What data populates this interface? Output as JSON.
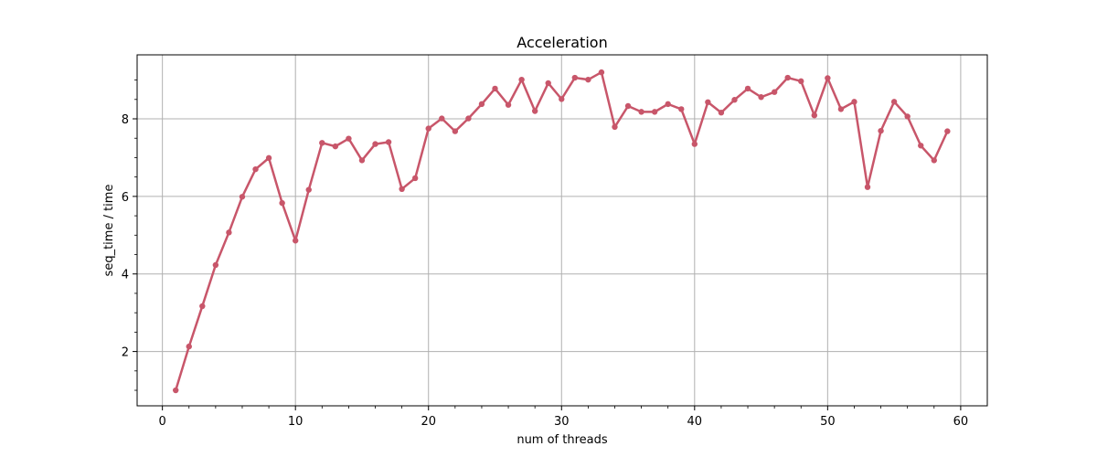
{
  "chart_data": {
    "type": "line",
    "title": "Acceleration",
    "xlabel": "num of threads",
    "ylabel": "seq_time / time",
    "xlim": [
      -1.9,
      62
    ],
    "ylim": [
      0.6,
      9.65
    ],
    "xticks": [
      0,
      10,
      20,
      30,
      40,
      50,
      60
    ],
    "yticks": [
      2,
      4,
      6,
      8
    ],
    "grid": true,
    "legend": "none",
    "series": [
      {
        "color": "#c8566a",
        "marker": "circle",
        "x": [
          1,
          2,
          3,
          4,
          5,
          6,
          7,
          8,
          9,
          10,
          11,
          12,
          13,
          14,
          15,
          16,
          17,
          18,
          19,
          20,
          21,
          22,
          23,
          24,
          25,
          26,
          27,
          28,
          29,
          30,
          31,
          32,
          33,
          34,
          35,
          36,
          37,
          38,
          39,
          40,
          41,
          42,
          43,
          44,
          45,
          46,
          47,
          48,
          49,
          50,
          51,
          52,
          53,
          54,
          55,
          56,
          57,
          58,
          59
        ],
        "values": [
          1.0,
          2.13,
          3.17,
          4.23,
          5.07,
          5.99,
          6.7,
          6.99,
          5.83,
          4.86,
          6.17,
          7.38,
          7.29,
          7.49,
          6.93,
          7.35,
          7.4,
          6.19,
          6.47,
          7.75,
          8.01,
          7.68,
          8.01,
          8.38,
          8.78,
          8.36,
          9.01,
          8.2,
          8.92,
          8.51,
          9.06,
          9.01,
          9.2,
          7.79,
          8.33,
          8.18,
          8.18,
          8.38,
          8.25,
          7.35,
          8.43,
          8.16,
          8.49,
          8.78,
          8.56,
          8.69,
          9.06,
          8.97,
          8.09,
          9.05,
          8.25,
          8.44,
          6.24,
          7.69,
          8.44,
          8.06,
          7.31,
          6.93,
          7.68
        ]
      }
    ]
  }
}
